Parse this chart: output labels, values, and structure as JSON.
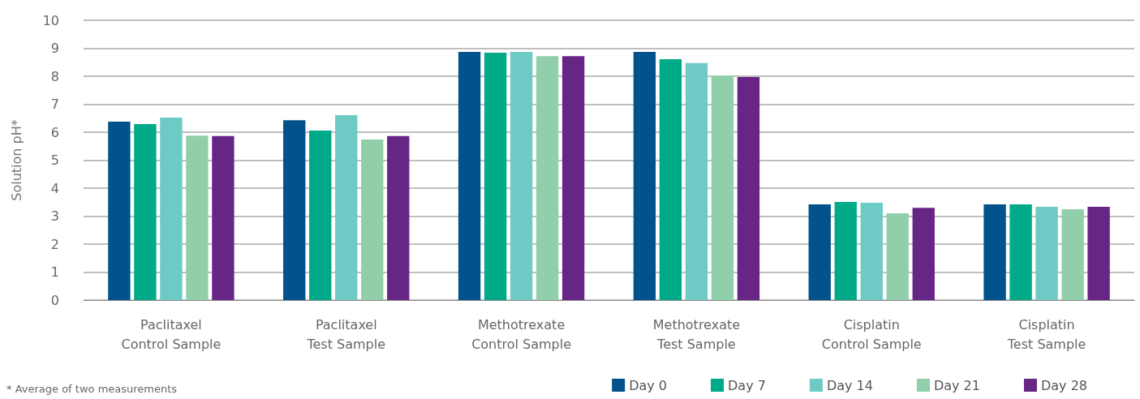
{
  "chart_data": {
    "type": "bar",
    "ylabel": "Solution pH*",
    "categories": [
      "Paclitaxel\nControl Sample",
      "Paclitaxel\nTest Sample",
      "Methotrexate\nControl Sample",
      "Methotrexate\nTest Sample",
      "Cisplatin\nControl Sample",
      "Cisplatin\nTest Sample"
    ],
    "series": [
      {
        "name": "Day 0",
        "color": "#02538b",
        "values": [
          6.38,
          6.43,
          8.87,
          8.87,
          3.42,
          3.42
        ]
      },
      {
        "name": "Day 7",
        "color": "#00aa89",
        "values": [
          6.29,
          6.06,
          8.84,
          8.61,
          3.51,
          3.42
        ]
      },
      {
        "name": "Day 14",
        "color": "#6ecac5",
        "values": [
          6.52,
          6.61,
          8.87,
          8.47,
          3.48,
          3.33
        ]
      },
      {
        "name": "Day 21",
        "color": "#91cfab",
        "values": [
          5.88,
          5.74,
          8.72,
          8.03,
          3.1,
          3.25
        ]
      },
      {
        "name": "Day 28",
        "color": "#672586",
        "values": [
          5.86,
          5.86,
          8.72,
          7.97,
          3.3,
          3.33
        ]
      }
    ],
    "ylim": [
      0,
      10
    ],
    "yticks": [
      0,
      1,
      2,
      3,
      4,
      5,
      6,
      7,
      8,
      9,
      10
    ],
    "grid": "y",
    "legend": "bottom right",
    "annotations": [
      "* Average of two measurements"
    ]
  }
}
